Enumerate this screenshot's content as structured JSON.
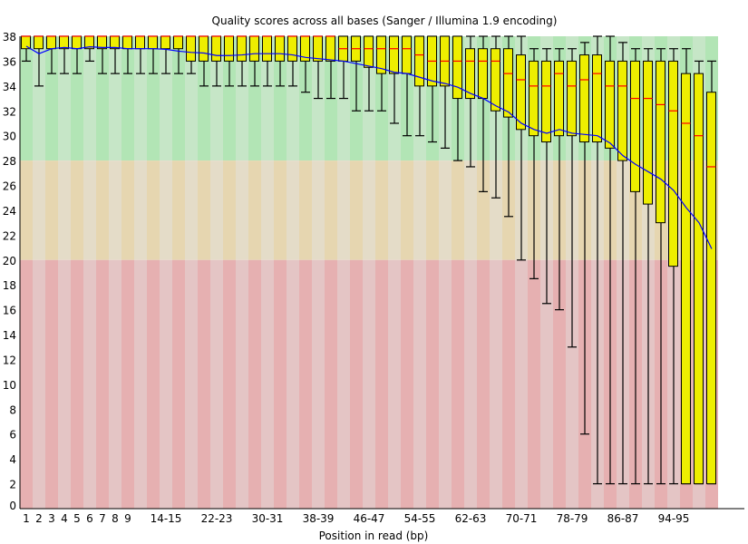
{
  "chart_data": {
    "type": "boxplot",
    "title": "Quality scores across all bases (Sanger / Illumina 1.9 encoding)",
    "xlabel": "Position in read (bp)",
    "ylabel": "",
    "ylim": [
      0,
      38
    ],
    "y_ticks": [
      "0",
      "2",
      "4",
      "6",
      "8",
      "10",
      "12",
      "14",
      "16",
      "18",
      "20",
      "22",
      "24",
      "26",
      "28",
      "30",
      "32",
      "34",
      "36",
      "38"
    ],
    "x_ticks": [
      {
        "index": 0,
        "label": "1"
      },
      {
        "index": 1,
        "label": "2"
      },
      {
        "index": 2,
        "label": "3"
      },
      {
        "index": 3,
        "label": "4"
      },
      {
        "index": 4,
        "label": "5"
      },
      {
        "index": 5,
        "label": "6"
      },
      {
        "index": 6,
        "label": "7"
      },
      {
        "index": 7,
        "label": "8"
      },
      {
        "index": 8,
        "label": "9"
      },
      {
        "index": 11,
        "label": "14-15"
      },
      {
        "index": 15,
        "label": "22-23"
      },
      {
        "index": 19,
        "label": "30-31"
      },
      {
        "index": 23,
        "label": "38-39"
      },
      {
        "index": 27,
        "label": "46-47"
      },
      {
        "index": 31,
        "label": "54-55"
      },
      {
        "index": 35,
        "label": "62-63"
      },
      {
        "index": 39,
        "label": "70-71"
      },
      {
        "index": 43,
        "label": "78-79"
      },
      {
        "index": 47,
        "label": "86-87"
      },
      {
        "index": 51,
        "label": "94-95"
      }
    ],
    "bands": [
      {
        "name": "good",
        "from": 28,
        "to": 38,
        "colors": [
          "#b2e5b5",
          "#c6e6c7"
        ]
      },
      {
        "name": "reasonable",
        "from": 20,
        "to": 28,
        "colors": [
          "#e6d6b0",
          "#e4dcc8"
        ]
      },
      {
        "name": "poor",
        "from": 0,
        "to": 20,
        "colors": [
          "#e6b0b1",
          "#e4c5c5"
        ]
      }
    ],
    "colors": {
      "box": "#eeee00",
      "median": "#ff0000",
      "mean": "#0000ff",
      "whisker": "#000000"
    },
    "upper_whisker": [
      38,
      38,
      38,
      38,
      38,
      38,
      38,
      38,
      38,
      38,
      38,
      38,
      38,
      38,
      38,
      38,
      38,
      38,
      38,
      38,
      38,
      38,
      38,
      38,
      38,
      38,
      38,
      38,
      38,
      38,
      38,
      38,
      38,
      38,
      38,
      38,
      38,
      38,
      38,
      38,
      37,
      37,
      37,
      37,
      37.5,
      38,
      38,
      37.5,
      37,
      37,
      37,
      37,
      37,
      36,
      36
    ],
    "q3": [
      38,
      38,
      38,
      38,
      38,
      38,
      38,
      38,
      38,
      38,
      38,
      38,
      38,
      38,
      38,
      38,
      38,
      38,
      38,
      38,
      38,
      38,
      38,
      38,
      38,
      38,
      38,
      38,
      38,
      38,
      38,
      38,
      38,
      38,
      38,
      37,
      37,
      37,
      37,
      36.5,
      36,
      36,
      36,
      36,
      36.5,
      36.5,
      36,
      36,
      36,
      36,
      36,
      36,
      35,
      35,
      33.5
    ],
    "median": [
      38,
      38,
      38,
      38,
      38,
      38,
      38,
      38,
      38,
      38,
      38,
      38,
      38,
      38,
      38,
      38,
      38,
      38,
      38,
      38,
      38,
      38,
      38,
      38,
      38,
      37,
      37,
      37,
      37,
      37,
      37,
      36.5,
      36,
      36,
      36,
      36,
      36,
      36,
      35,
      34.5,
      34,
      34,
      35,
      34,
      34.5,
      35,
      34,
      34,
      33,
      33,
      32.5,
      32,
      31,
      30,
      27.5
    ],
    "q1": [
      37,
      37,
      37,
      37,
      37,
      37,
      37,
      37,
      37,
      37,
      37,
      37,
      37,
      36,
      36,
      36,
      36,
      36,
      36,
      36,
      36,
      36,
      36,
      36,
      36,
      36,
      36,
      35.5,
      35,
      35,
      35,
      34,
      34,
      34,
      33,
      33,
      33,
      32,
      31.5,
      30.5,
      30,
      29.5,
      30,
      30,
      29.5,
      29.5,
      29,
      28,
      25.5,
      24.5,
      23,
      19.5,
      2,
      2,
      2
    ],
    "lower_whisker": [
      36,
      34,
      35,
      35,
      35,
      36,
      35,
      35,
      35,
      35,
      35,
      35,
      35,
      35,
      34,
      34,
      34,
      34,
      34,
      34,
      34,
      34,
      33.5,
      33,
      33,
      33,
      32,
      32,
      32,
      31,
      30,
      30,
      29.5,
      29,
      28,
      27.5,
      25.5,
      25,
      23.5,
      20,
      18.5,
      16.5,
      16,
      13,
      6,
      2,
      2,
      2,
      2,
      2,
      2,
      2,
      2,
      2,
      2
    ],
    "mean": [
      37.2,
      36.6,
      37.0,
      37.1,
      37.0,
      37.15,
      37.1,
      37.1,
      37.0,
      37.0,
      37.0,
      36.95,
      36.8,
      36.7,
      36.65,
      36.45,
      36.45,
      36.5,
      36.6,
      36.6,
      36.6,
      36.5,
      36.3,
      36.2,
      36.1,
      36.0,
      35.8,
      35.6,
      35.4,
      35.1,
      35.0,
      34.7,
      34.4,
      34.2,
      33.9,
      33.4,
      33.0,
      32.4,
      31.9,
      31.0,
      30.5,
      30.2,
      30.5,
      30.2,
      30.1,
      30.0,
      29.4,
      28.4,
      27.7,
      27.1,
      26.5,
      25.6,
      24.2,
      23.0,
      20.9
    ]
  }
}
